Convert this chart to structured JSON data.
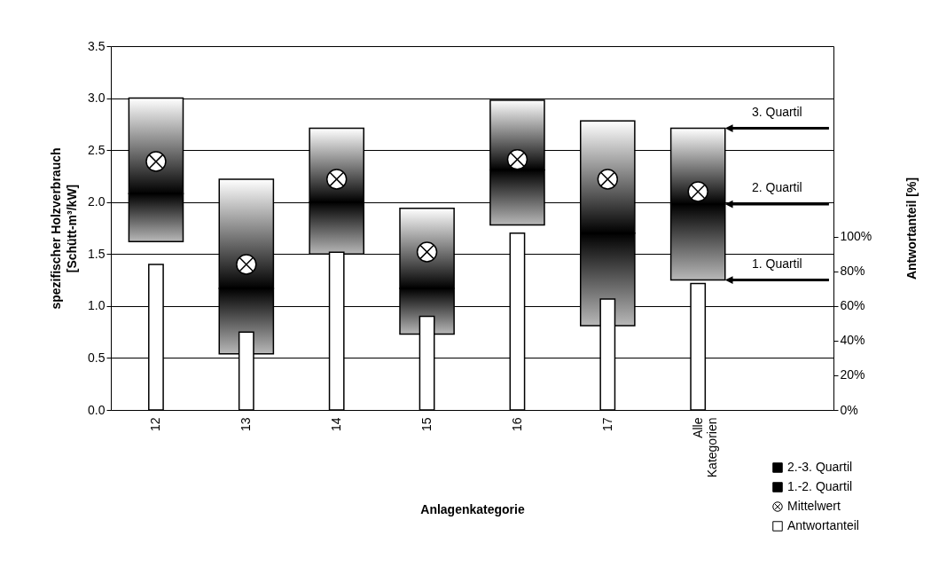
{
  "chart_data": {
    "type": "bar",
    "xlabel": "Anlagenkategorie",
    "ylabel": "spezifischer Holzverbrauch\n[Schütt-m³/kW]",
    "y2label": "Antwortanteil [%]",
    "categories": [
      "12",
      "13",
      "14",
      "15",
      "16",
      "17",
      "Alle Kategorien",
      null
    ],
    "series": [
      {
        "name": "2.-3. Quartil",
        "color": "#000000",
        "base": [
          2.08,
          1.17,
          2.0,
          1.17,
          2.31,
          1.7,
          1.98,
          null
        ],
        "values": [
          0.92,
          1.05,
          0.71,
          0.77,
          0.67,
          1.08,
          0.73,
          null
        ]
      },
      {
        "name": "1.-2. Quartil",
        "color": "#000000",
        "base": [
          1.62,
          0.54,
          1.5,
          0.73,
          1.78,
          0.81,
          1.25,
          null
        ],
        "values": [
          0.46,
          0.63,
          0.5,
          0.44,
          0.53,
          0.89,
          0.73,
          null
        ]
      },
      {
        "name": "Mittelwert",
        "type": "scatter",
        "marker": "circle",
        "color": "#ffffff",
        "values": [
          2.39,
          1.4,
          2.22,
          1.52,
          2.41,
          2.22,
          2.1,
          null
        ]
      },
      {
        "name": "Antwortanteil",
        "axis": "y2",
        "color": "#ffffff",
        "values": [
          84,
          45,
          91,
          54,
          102,
          64,
          73,
          null
        ]
      }
    ],
    "ylim": [
      0,
      3.5
    ],
    "yticks": [
      {
        "value": 0,
        "label": "0.0"
      },
      {
        "value": 0.5,
        "label": "0.5"
      },
      {
        "value": 1,
        "label": "1.0"
      },
      {
        "value": 1.5,
        "label": "1.5"
      },
      {
        "value": 2,
        "label": "2.0"
      },
      {
        "value": 2.5,
        "label": "2.5"
      },
      {
        "value": 3,
        "label": "3.0"
      },
      {
        "value": 3.5,
        "label": "3.5"
      }
    ],
    "y2lim": [
      0,
      210
    ],
    "y2ticks": [
      {
        "value": 0,
        "label": "0%"
      },
      {
        "value": 20,
        "label": "20%"
      },
      {
        "value": 40,
        "label": "40%"
      },
      {
        "value": 60,
        "label": "60%"
      },
      {
        "value": 80,
        "label": "80%"
      },
      {
        "value": 100,
        "label": "100%"
      }
    ],
    "annotations": [
      "3. Quartil",
      "2. Quartil",
      "1. Quartil"
    ],
    "grid": "y",
    "legend": "bottom right"
  }
}
